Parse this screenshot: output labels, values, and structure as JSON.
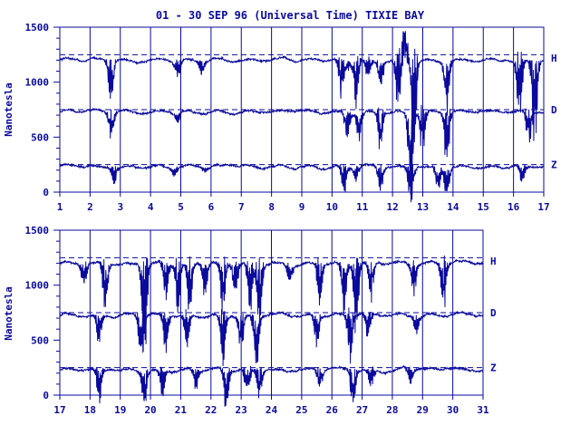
{
  "title": "01 - 30 SEP 96 (Universal Time) TIXIE BAY",
  "ylabel": "Nanotesla",
  "colors": {
    "ink": "#0a0a9c",
    "background": "#ffffff"
  },
  "chart_data": [
    {
      "type": "line",
      "panel": "top",
      "x_ticks": [
        "1",
        "2",
        "3",
        "4",
        "5",
        "6",
        "7",
        "8",
        "9",
        "10",
        "11",
        "12",
        "13",
        "14",
        "15",
        "16",
        "17"
      ],
      "xlim": [
        1,
        17
      ],
      "ylim": [
        0,
        1500
      ],
      "y_ticks": [
        "0",
        "500",
        "1000",
        "1500"
      ],
      "reference_lines": [
        1250,
        750,
        250
      ],
      "series": [
        {
          "name": "H",
          "baseline": 1200,
          "events": [
            [
              2.6,
              -40
            ],
            [
              2.7,
              -300
            ],
            [
              4.9,
              -150
            ],
            [
              5.7,
              -120
            ],
            [
              10.3,
              -300
            ],
            [
              10.5,
              -100
            ],
            [
              10.8,
              -350
            ],
            [
              11.2,
              -200
            ],
            [
              11.6,
              -250
            ],
            [
              12.2,
              -500
            ],
            [
              12.4,
              300
            ],
            [
              12.7,
              -700
            ],
            [
              13.8,
              -400
            ],
            [
              16.2,
              -500
            ],
            [
              16.7,
              -600
            ]
          ]
        },
        {
          "name": "D",
          "baseline": 730,
          "events": [
            [
              2.7,
              -200
            ],
            [
              4.9,
              -80
            ],
            [
              10.5,
              -250
            ],
            [
              10.9,
              -200
            ],
            [
              11.6,
              -300
            ],
            [
              12.6,
              -650
            ],
            [
              13.0,
              -350
            ],
            [
              13.8,
              -400
            ],
            [
              16.5,
              -250
            ]
          ]
        },
        {
          "name": "Z",
          "baseline": 230,
          "events": [
            [
              2.8,
              -130
            ],
            [
              4.8,
              -70
            ],
            [
              5.8,
              -40
            ],
            [
              10.4,
              -240
            ],
            [
              10.8,
              -120
            ],
            [
              11.6,
              -200
            ],
            [
              12.6,
              -300
            ],
            [
              13.5,
              -200
            ],
            [
              13.8,
              -250
            ],
            [
              16.3,
              -150
            ]
          ]
        }
      ]
    },
    {
      "type": "line",
      "panel": "bottom",
      "x_ticks": [
        "17",
        "18",
        "19",
        "20",
        "21",
        "22",
        "23",
        "24",
        "25",
        "26",
        "27",
        "28",
        "29",
        "30",
        "31"
      ],
      "xlim": [
        17,
        31
      ],
      "ylim": [
        0,
        1500
      ],
      "y_ticks": [
        "0",
        "500",
        "1000",
        "1500"
      ],
      "reference_lines": [
        1250,
        750,
        250
      ],
      "series": [
        {
          "name": "H",
          "baseline": 1200,
          "events": [
            [
              17.8,
              -200
            ],
            [
              18.5,
              -400
            ],
            [
              19.8,
              -700
            ],
            [
              20.5,
              -300
            ],
            [
              20.9,
              -350
            ],
            [
              21.3,
              -400
            ],
            [
              21.8,
              -250
            ],
            [
              22.4,
              -400
            ],
            [
              22.8,
              -300
            ],
            [
              23.3,
              -400
            ],
            [
              23.6,
              -500
            ],
            [
              24.6,
              -150
            ],
            [
              25.6,
              -300
            ],
            [
              26.4,
              -400
            ],
            [
              26.8,
              -500
            ],
            [
              27.3,
              -300
            ],
            [
              28.7,
              -250
            ],
            [
              29.7,
              -350
            ]
          ]
        },
        {
          "name": "D",
          "baseline": 730,
          "events": [
            [
              18.3,
              -250
            ],
            [
              19.7,
              -400
            ],
            [
              20.5,
              -300
            ],
            [
              21.2,
              -250
            ],
            [
              22.4,
              -350
            ],
            [
              23.0,
              -300
            ],
            [
              23.5,
              -450
            ],
            [
              25.5,
              -250
            ],
            [
              26.6,
              -350
            ],
            [
              27.2,
              -200
            ],
            [
              28.8,
              -150
            ]
          ]
        },
        {
          "name": "Z",
          "baseline": 230,
          "events": [
            [
              18.3,
              -250
            ],
            [
              19.8,
              -250
            ],
            [
              20.4,
              -200
            ],
            [
              21.5,
              -150
            ],
            [
              22.5,
              -300
            ],
            [
              23.2,
              -250
            ],
            [
              23.6,
              -220
            ],
            [
              25.6,
              -150
            ],
            [
              26.7,
              -300
            ],
            [
              27.3,
              -150
            ],
            [
              28.6,
              -120
            ]
          ]
        }
      ]
    }
  ]
}
